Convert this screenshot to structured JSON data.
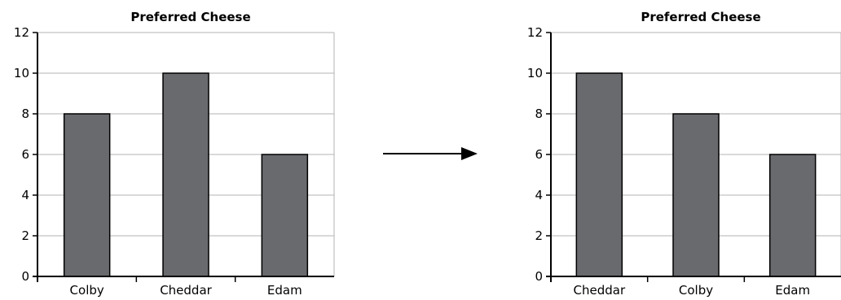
{
  "chart_data": [
    {
      "type": "bar",
      "title": "Preferred Cheese",
      "categories": [
        "Colby",
        "Cheddar",
        "Edam"
      ],
      "values": [
        8,
        10,
        6
      ],
      "ylim": [
        0,
        12
      ],
      "yticks": [
        0,
        2,
        4,
        6,
        8,
        10,
        12
      ],
      "xlabel": "",
      "ylabel": "",
      "grid": true,
      "bar_color": "#696a6e",
      "grid_color": "#b3b3b3"
    },
    {
      "type": "bar",
      "title": "Preferred Cheese",
      "categories": [
        "Cheddar",
        "Colby",
        "Edam"
      ],
      "values": [
        10,
        8,
        6
      ],
      "ylim": [
        0,
        12
      ],
      "yticks": [
        0,
        2,
        4,
        6,
        8,
        10,
        12
      ],
      "xlabel": "",
      "ylabel": "",
      "grid": true,
      "bar_color": "#696a6e",
      "grid_color": "#b3b3b3"
    }
  ],
  "connector": {
    "icon": "right-arrow-icon"
  }
}
